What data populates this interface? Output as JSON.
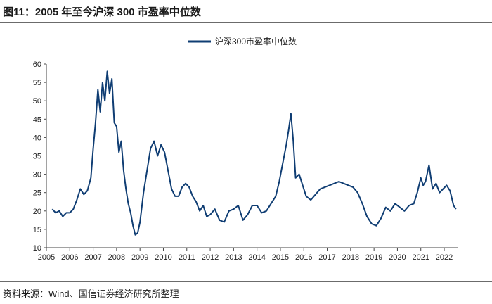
{
  "figure_title": "图11：2005 年至今沪深 300 市盈率中位数",
  "source_note": "资料来源：Wind、国信证券经济研究所整理",
  "colors": {
    "series": "#0f3d73",
    "axis": "#444444",
    "rule": "#6b6b6b"
  },
  "chart_data": {
    "type": "line",
    "title": "",
    "xlabel": "",
    "ylabel": "",
    "ylim": [
      10,
      60
    ],
    "y_ticks": [
      "10",
      "15",
      "20",
      "25",
      "30",
      "35",
      "40",
      "45",
      "50",
      "55",
      "60"
    ],
    "xlim": [
      2005,
      2022.6
    ],
    "x_ticks": [
      "2005",
      "2006",
      "2007",
      "2008",
      "2009",
      "2010",
      "2011",
      "2012",
      "2013",
      "2014",
      "2015",
      "2016",
      "2017",
      "2018",
      "2019",
      "2020",
      "2021",
      "2022"
    ],
    "grid": false,
    "legend": "top-center",
    "series": [
      {
        "name": "沪深300市盈率中位数",
        "x": [
          2005.25,
          2005.4,
          2005.55,
          2005.7,
          2005.85,
          2006.0,
          2006.15,
          2006.3,
          2006.45,
          2006.6,
          2006.75,
          2006.9,
          2007.0,
          2007.1,
          2007.2,
          2007.3,
          2007.4,
          2007.5,
          2007.6,
          2007.7,
          2007.8,
          2007.9,
          2008.0,
          2008.1,
          2008.2,
          2008.3,
          2008.4,
          2008.5,
          2008.6,
          2008.7,
          2008.8,
          2008.9,
          2009.0,
          2009.15,
          2009.3,
          2009.45,
          2009.6,
          2009.75,
          2009.9,
          2010.05,
          2010.2,
          2010.35,
          2010.5,
          2010.65,
          2010.8,
          2010.95,
          2011.1,
          2011.25,
          2011.4,
          2011.55,
          2011.7,
          2011.85,
          2012.0,
          2012.2,
          2012.4,
          2012.6,
          2012.8,
          2013.0,
          2013.2,
          2013.4,
          2013.6,
          2013.8,
          2014.0,
          2014.2,
          2014.4,
          2014.6,
          2014.8,
          2014.95,
          2015.1,
          2015.25,
          2015.35,
          2015.45,
          2015.55,
          2015.65,
          2015.8,
          2015.95,
          2016.1,
          2016.3,
          2016.5,
          2016.7,
          2016.9,
          2017.1,
          2017.3,
          2017.5,
          2017.7,
          2017.9,
          2018.1,
          2018.3,
          2018.5,
          2018.7,
          2018.9,
          2019.1,
          2019.3,
          2019.5,
          2019.7,
          2019.9,
          2020.1,
          2020.3,
          2020.5,
          2020.7,
          2020.85,
          2021.0,
          2021.1,
          2021.2,
          2021.35,
          2021.5,
          2021.65,
          2021.8,
          2021.95,
          2022.1,
          2022.25,
          2022.4,
          2022.5
        ],
        "values": [
          20.5,
          19.5,
          20.0,
          18.5,
          19.5,
          19.5,
          20.5,
          23.0,
          26.0,
          24.5,
          25.5,
          29.0,
          37.0,
          44.0,
          53.0,
          47.0,
          55.0,
          50.0,
          58.0,
          52.0,
          56.0,
          44.0,
          43.0,
          36.0,
          39.0,
          31.0,
          26.0,
          22.0,
          19.5,
          16.0,
          13.5,
          14.0,
          17.0,
          25.0,
          31.0,
          37.0,
          39.0,
          35.0,
          38.0,
          36.0,
          31.0,
          26.0,
          24.0,
          24.0,
          26.5,
          27.5,
          26.5,
          24.0,
          22.5,
          20.0,
          21.5,
          18.5,
          19.0,
          20.5,
          17.5,
          17.0,
          20.0,
          20.5,
          21.5,
          17.5,
          19.0,
          21.5,
          21.5,
          19.5,
          20.0,
          22.0,
          24.0,
          28.0,
          33.0,
          38.0,
          42.0,
          46.5,
          39.0,
          29.0,
          30.0,
          27.0,
          24.0,
          23.0,
          24.5,
          26.0,
          26.5,
          27.0,
          27.5,
          28.0,
          27.5,
          27.0,
          26.5,
          25.0,
          22.0,
          18.5,
          16.5,
          16.0,
          18.0,
          21.0,
          20.0,
          22.0,
          21.0,
          20.0,
          21.5,
          22.0,
          25.0,
          29.0,
          27.0,
          28.0,
          32.5,
          26.0,
          27.5,
          25.0,
          26.0,
          27.0,
          25.5,
          21.5,
          20.5
        ]
      }
    ]
  }
}
